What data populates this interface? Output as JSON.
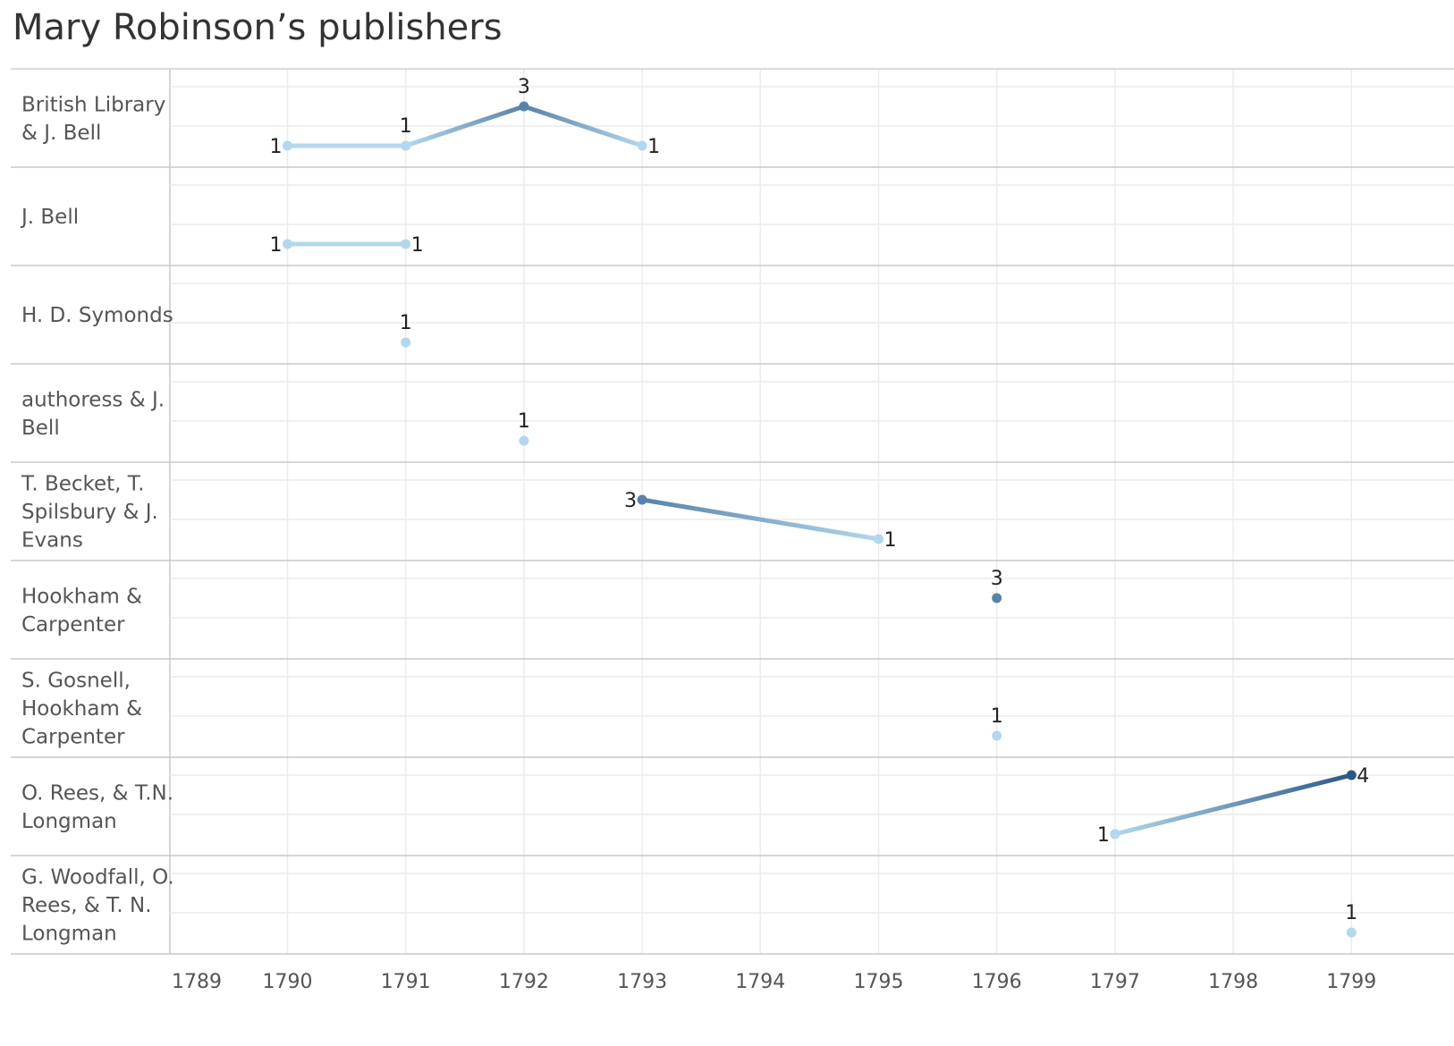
{
  "title": "Mary Robinson’s publishers",
  "chart_data": {
    "type": "line",
    "title": "Mary Robinson’s publishers",
    "x_ticks": [
      "1789",
      "1790",
      "1791",
      "1792",
      "1793",
      "1794",
      "1795",
      "1796",
      "1797",
      "1798",
      "1799"
    ],
    "xlim": [
      1789,
      1799
    ],
    "color_scale": {
      "low": "#b3d7ec",
      "high": "#2b5788",
      "min": 1,
      "max": 4
    },
    "grid": true,
    "rows": [
      {
        "label_lines": [
          "British Library",
          "& J. Bell"
        ],
        "points": [
          {
            "x": 1790,
            "y": 1
          },
          {
            "x": 1791,
            "y": 1
          },
          {
            "x": 1792,
            "y": 3
          },
          {
            "x": 1793,
            "y": 1
          }
        ],
        "labels": [
          "1",
          "1",
          "3",
          "1"
        ],
        "label_pos": [
          "left",
          "above",
          "above",
          "right"
        ]
      },
      {
        "label_lines": [
          "J. Bell"
        ],
        "points": [
          {
            "x": 1790,
            "y": 1
          },
          {
            "x": 1791,
            "y": 1
          }
        ],
        "labels": [
          "1",
          "1"
        ],
        "label_pos": [
          "left",
          "right"
        ]
      },
      {
        "label_lines": [
          "H. D. Symonds"
        ],
        "points": [
          {
            "x": 1791,
            "y": 1
          }
        ],
        "labels": [
          "1"
        ],
        "label_pos": [
          "above"
        ]
      },
      {
        "label_lines": [
          "authoress & J.",
          "Bell"
        ],
        "points": [
          {
            "x": 1792,
            "y": 1
          }
        ],
        "labels": [
          "1"
        ],
        "label_pos": [
          "above"
        ]
      },
      {
        "label_lines": [
          "T. Becket, T.",
          "Spilsbury & J.",
          "Evans"
        ],
        "points": [
          {
            "x": 1793,
            "y": 3
          },
          {
            "x": 1795,
            "y": 1
          }
        ],
        "labels": [
          "3",
          "1"
        ],
        "label_pos": [
          "left",
          "right"
        ]
      },
      {
        "label_lines": [
          "Hookham &",
          "Carpenter"
        ],
        "points": [
          {
            "x": 1796,
            "y": 3
          }
        ],
        "labels": [
          "3"
        ],
        "label_pos": [
          "above"
        ]
      },
      {
        "label_lines": [
          "S. Gosnell,",
          "Hookham &",
          "Carpenter"
        ],
        "points": [
          {
            "x": 1796,
            "y": 1
          }
        ],
        "labels": [
          "1"
        ],
        "label_pos": [
          "above"
        ]
      },
      {
        "label_lines": [
          "O. Rees, & T.N.",
          "Longman"
        ],
        "points": [
          {
            "x": 1797,
            "y": 1
          },
          {
            "x": 1799,
            "y": 4
          }
        ],
        "labels": [
          "1",
          "4"
        ],
        "label_pos": [
          "left",
          "right"
        ]
      },
      {
        "label_lines": [
          "G. Woodfall, O.",
          "Rees, & T. N.",
          "Longman"
        ],
        "points": [
          {
            "x": 1799,
            "y": 1
          }
        ],
        "labels": [
          "1"
        ],
        "label_pos": [
          "above"
        ]
      }
    ]
  }
}
